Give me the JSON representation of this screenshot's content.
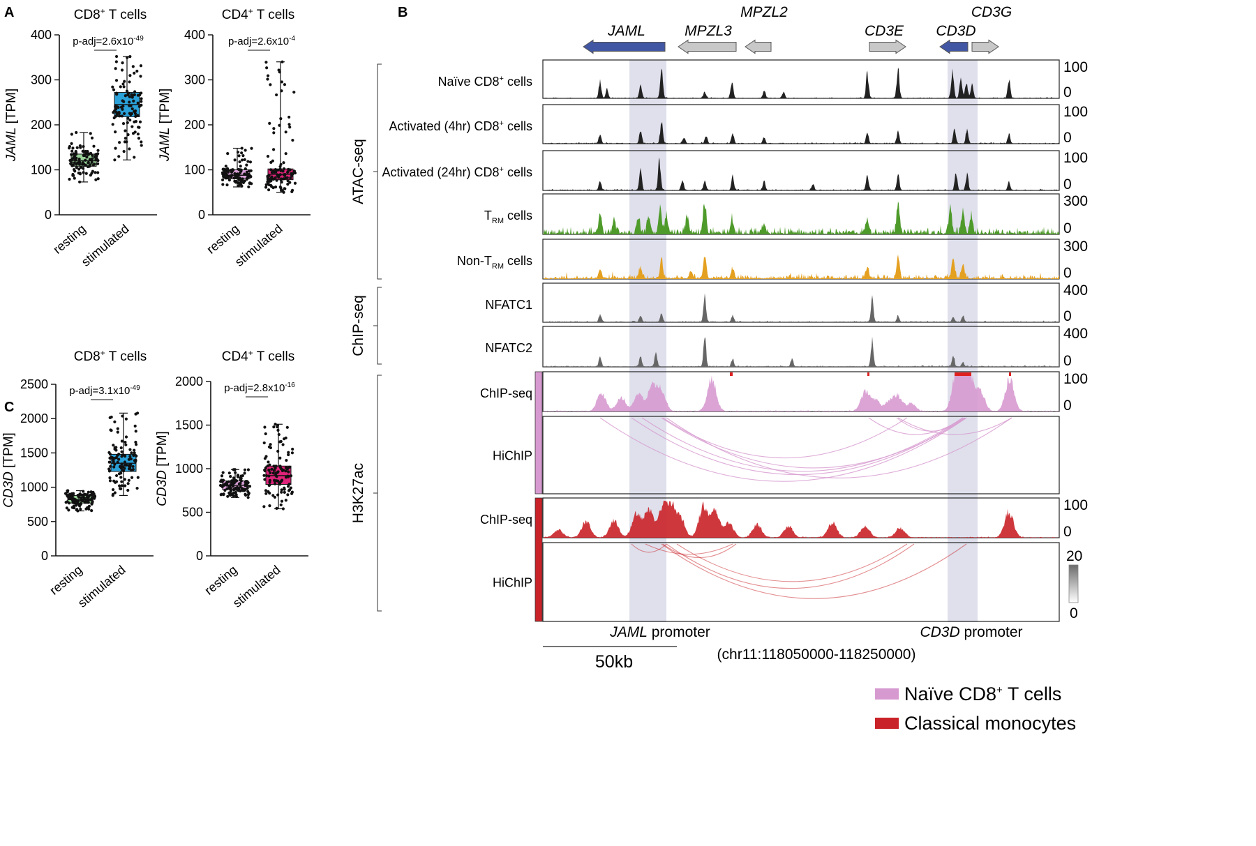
{
  "panel_labels": {
    "a": "A",
    "b": "B",
    "c": "C"
  },
  "colors": {
    "resting_cd8": "#9ad39a",
    "stimulated_cd8": "#2aa1d8",
    "resting_cd4": "#d9a0d8",
    "stimulated_cd4": "#e0237a",
    "atac_dark": "#222222",
    "trm_green": "#4e9a2a",
    "nontrm_orange": "#e4a021",
    "chip_gray": "#666666",
    "naive_pink": "#d79ad0",
    "mono_red": "#c92228",
    "promoter_shade": "#dfe0ec",
    "gene_blue": "#4257a3",
    "gene_gray": "#c8c8c8"
  },
  "chart_data": [
    {
      "id": "a-left",
      "type": "box",
      "title": "CD8",
      "title_sup": "+",
      "title_rest": " T cells",
      "ylabel_gene": "JAML",
      "ylabel_unit": " [TPM]",
      "ylim": [
        0,
        400
      ],
      "yticks": [
        "0",
        "100",
        "200",
        "300",
        "400"
      ],
      "categories": [
        "resting",
        "stimulated"
      ],
      "pvalue": {
        "base": "p-adj=2.6x10",
        "exp": "-49"
      },
      "series": [
        {
          "name": "resting",
          "min": 73,
          "q1": 108,
          "median": 120,
          "q3": 135,
          "max": 183,
          "color_key": "resting_cd8"
        },
        {
          "name": "stimulated",
          "min": 122,
          "q1": 218,
          "median": 245,
          "q3": 272,
          "max": 352,
          "color_key": "stimulated_cd8"
        }
      ]
    },
    {
      "id": "a-right",
      "type": "box",
      "title": "CD4",
      "title_sup": "+",
      "title_rest": " T cells",
      "ylabel_gene": "JAML",
      "ylabel_unit": " [TPM]",
      "ylim": [
        0,
        400
      ],
      "yticks": [
        "0",
        "100",
        "200",
        "300",
        "400"
      ],
      "categories": [
        "resting",
        "stimulated"
      ],
      "pvalue": {
        "base": "p-adj=2.6x10",
        "exp": "-4"
      },
      "series": [
        {
          "name": "resting",
          "min": 62,
          "q1": 80,
          "median": 88,
          "q3": 100,
          "max": 148,
          "color_key": "resting_cd4"
        },
        {
          "name": "stimulated",
          "min": 50,
          "q1": 78,
          "median": 90,
          "q3": 102,
          "max": 340,
          "color_key": "stimulated_cd4"
        }
      ]
    },
    {
      "id": "c-left",
      "type": "box",
      "title": "CD8",
      "title_sup": "+",
      "title_rest": " T cells",
      "ylabel_gene": "CD3D",
      "ylabel_unit": " [TPM]",
      "ylim": [
        0,
        2500
      ],
      "yticks": [
        "0",
        "500",
        "1000",
        "1500",
        "2000",
        "2500"
      ],
      "categories": [
        "resting",
        "stimulated"
      ],
      "pvalue": {
        "base": "p-adj=3.1x10",
        "exp": "-49"
      },
      "series": [
        {
          "name": "resting",
          "min": 655,
          "q1": 770,
          "median": 820,
          "q3": 880,
          "max": 950,
          "color_key": "resting_cd8"
        },
        {
          "name": "stimulated",
          "min": 880,
          "q1": 1230,
          "median": 1350,
          "q3": 1480,
          "max": 2080,
          "color_key": "stimulated_cd8"
        }
      ]
    },
    {
      "id": "c-right",
      "type": "box",
      "title": "CD4",
      "title_sup": "+",
      "title_rest": " T cells",
      "ylabel_gene": "CD3D",
      "ylabel_unit": " [TPM]",
      "ylim": [
        0,
        2000
      ],
      "yticks": [
        "0",
        "500",
        "1000",
        "1500",
        "2000"
      ],
      "categories": [
        "resting",
        "stimulated"
      ],
      "pvalue": {
        "base": "p-adj=2.8x10",
        "exp": "-16"
      },
      "series": [
        {
          "name": "resting",
          "min": 670,
          "q1": 760,
          "median": 810,
          "q3": 860,
          "max": 990,
          "color_key": "resting_cd4"
        },
        {
          "name": "stimulated",
          "min": 540,
          "q1": 820,
          "median": 920,
          "q3": 1030,
          "max": 1510,
          "color_key": "stimulated_cd4"
        }
      ]
    }
  ],
  "browser": {
    "genes": [
      {
        "name": "JAML",
        "strand": "-",
        "color_key": "gene_blue"
      },
      {
        "name": "MPZL3",
        "strand": "-",
        "color_key": "gene_gray"
      },
      {
        "name": "MPZL2",
        "strand": "-",
        "color_key": "gene_gray"
      },
      {
        "name": "CD3E",
        "strand": "+",
        "color_key": "gene_gray"
      },
      {
        "name": "CD3D",
        "strand": "-",
        "color_key": "gene_blue"
      },
      {
        "name": "CD3G",
        "strand": "+",
        "color_key": "gene_gray"
      }
    ],
    "groups": [
      {
        "label": "ATAC-seq"
      },
      {
        "label": "ChIP-seq"
      },
      {
        "label": "H3K27ac"
      }
    ],
    "tracks": [
      {
        "id": "naive",
        "label_pre": "Naïve CD8",
        "label_sup": "+",
        "label_post": " cells",
        "ymax": "100",
        "ymin": "0",
        "color_key": "atac_dark"
      },
      {
        "id": "act4",
        "label_pre": "Activated (4hr) CD8",
        "label_sup": "+",
        "label_post": " cells",
        "ymax": "100",
        "ymin": "0",
        "color_key": "atac_dark"
      },
      {
        "id": "act24",
        "label_pre": "Activated (24hr) CD8",
        "label_sup": "+",
        "label_post": " cells",
        "ymax": "100",
        "ymin": "0",
        "color_key": "atac_dark"
      },
      {
        "id": "trm",
        "label_pre": "T",
        "label_sub": "RM",
        "label_post": " cells",
        "ymax": "300",
        "ymin": "0",
        "color_key": "trm_green"
      },
      {
        "id": "nontrm",
        "label_pre": "Non-T",
        "label_sub": "RM",
        "label_post": " cells",
        "ymax": "300",
        "ymin": "0",
        "color_key": "nontrm_orange"
      },
      {
        "id": "nfatc1",
        "label_pre": "NFATC1",
        "ymax": "400",
        "ymin": "0",
        "color_key": "chip_gray"
      },
      {
        "id": "nfatc2",
        "label_pre": "NFATC2",
        "ymax": "400",
        "ymin": "0",
        "color_key": "chip_gray"
      },
      {
        "id": "chip_naive",
        "label_pre": "ChIP-seq",
        "ymax": "100",
        "ymin": "0",
        "color_key": "naive_pink"
      },
      {
        "id": "hichip_naive",
        "label_pre": "HiChIP",
        "color_key": "naive_pink"
      },
      {
        "id": "chip_mono",
        "label_pre": "ChIP-seq",
        "ymax": "100",
        "ymin": "0",
        "color_key": "mono_red"
      },
      {
        "id": "hichip_mono",
        "label_pre": "HiChIP",
        "color_key": "mono_red"
      }
    ],
    "colorbar": {
      "max": "20",
      "min": "0"
    },
    "promoters": [
      {
        "gene": "JAML",
        "suffix": " promoter"
      },
      {
        "gene": "CD3D",
        "suffix": " promoter"
      }
    ],
    "scale_bar": "50kb",
    "locus": "(chr11:118050000-118250000)",
    "legend": [
      {
        "pre": "Naïve CD8",
        "sup": "+",
        "post": " T cells",
        "color_key": "naive_pink"
      },
      {
        "pre": "Classical monocytes",
        "color_key": "mono_red"
      }
    ]
  }
}
